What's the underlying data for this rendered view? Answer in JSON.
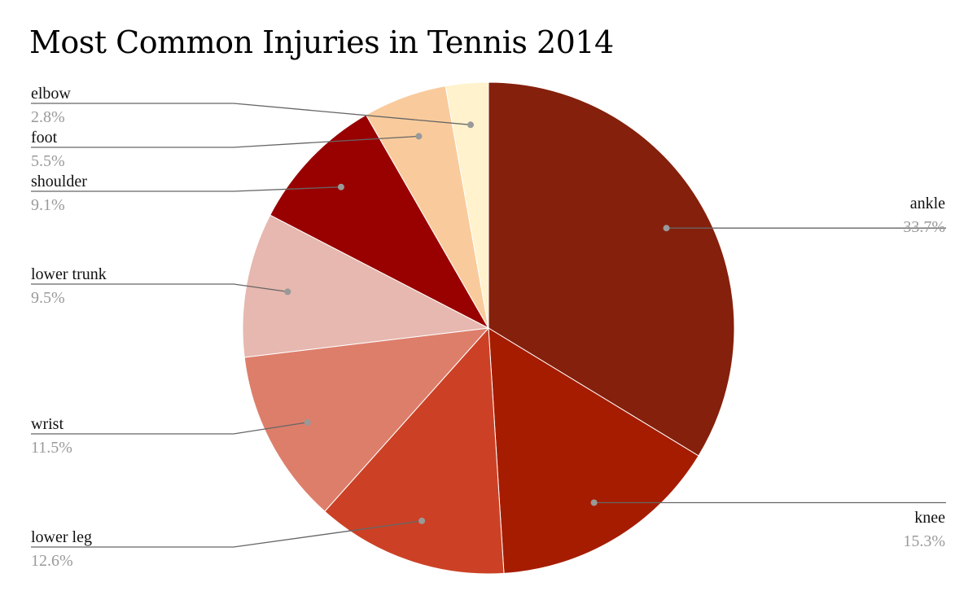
{
  "chart_data": {
    "type": "pie",
    "title": "Most Common Injuries in Tennis 2014",
    "slices": [
      {
        "label": "ankle",
        "value": 33.7,
        "value_label": "33.7%",
        "color": "#85200c"
      },
      {
        "label": "knee",
        "value": 15.3,
        "value_label": "15.3%",
        "color": "#a61c00"
      },
      {
        "label": "lower leg",
        "value": 12.6,
        "value_label": "12.6%",
        "color": "#cc4125"
      },
      {
        "label": "wrist",
        "value": 11.5,
        "value_label": "11.5%",
        "color": "#dd7e6b"
      },
      {
        "label": "lower trunk",
        "value": 9.5,
        "value_label": "9.5%",
        "color": "#e6b8af"
      },
      {
        "label": "shoulder",
        "value": 9.1,
        "value_label": "9.1%",
        "color": "#990000"
      },
      {
        "label": "foot",
        "value": 5.5,
        "value_label": "5.5%",
        "color": "#f9cb9c"
      },
      {
        "label": "elbow",
        "value": 2.8,
        "value_label": "2.8%",
        "color": "#fff2cc"
      }
    ],
    "start_angle": "12 o'clock",
    "direction": "clockwise",
    "legend": "none",
    "leader_line_color": "#666666"
  }
}
